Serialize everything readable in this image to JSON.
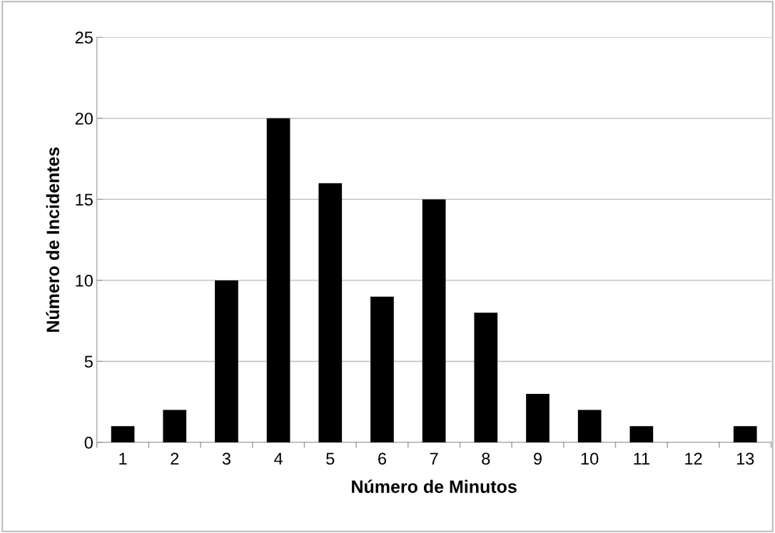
{
  "chart_data": {
    "type": "bar",
    "xlabel": "Número de Minutos",
    "ylabel": "Número de Incidentes",
    "categories": [
      "1",
      "2",
      "3",
      "4",
      "5",
      "6",
      "7",
      "8",
      "9",
      "10",
      "11",
      "12",
      "13"
    ],
    "values": [
      1,
      2,
      10,
      20,
      16,
      9,
      15,
      8,
      3,
      2,
      1,
      0,
      1
    ],
    "color": "#000000",
    "ylim": [
      0,
      25
    ],
    "yticks": [
      0,
      5,
      10,
      15,
      20,
      25
    ],
    "grid": "y"
  }
}
